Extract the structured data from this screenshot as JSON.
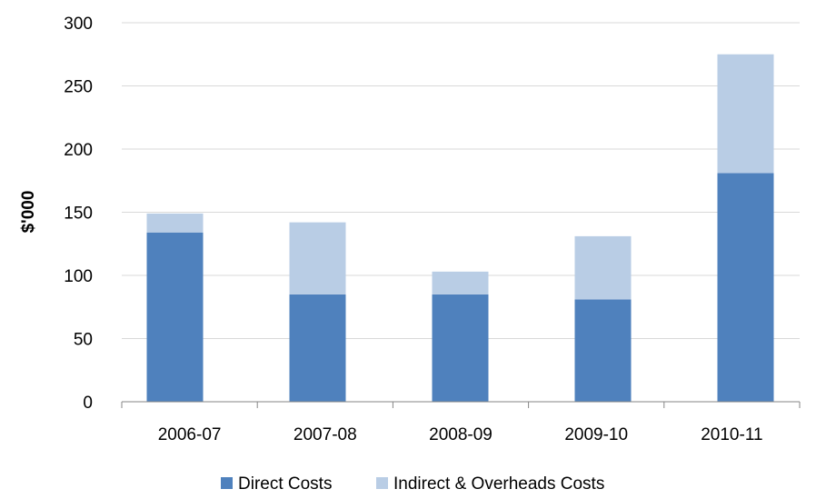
{
  "chart_data": {
    "type": "bar",
    "stacked": true,
    "categories": [
      "2006-07",
      "2007-08",
      "2008-09",
      "2009-10",
      "2010-11"
    ],
    "series": [
      {
        "name": "Direct Costs",
        "values": [
          134,
          85,
          85,
          81,
          181
        ],
        "color": "#4F81BD"
      },
      {
        "name": "Indirect & Overheads Costs",
        "values": [
          15,
          57,
          18,
          50,
          94
        ],
        "color": "#B9CDE5"
      }
    ],
    "ylabel": "$'000",
    "xlabel": "",
    "ylim": [
      0,
      300
    ],
    "yticks": [
      0,
      50,
      100,
      150,
      200,
      250,
      300
    ],
    "grid": true,
    "legend_position": "bottom"
  }
}
